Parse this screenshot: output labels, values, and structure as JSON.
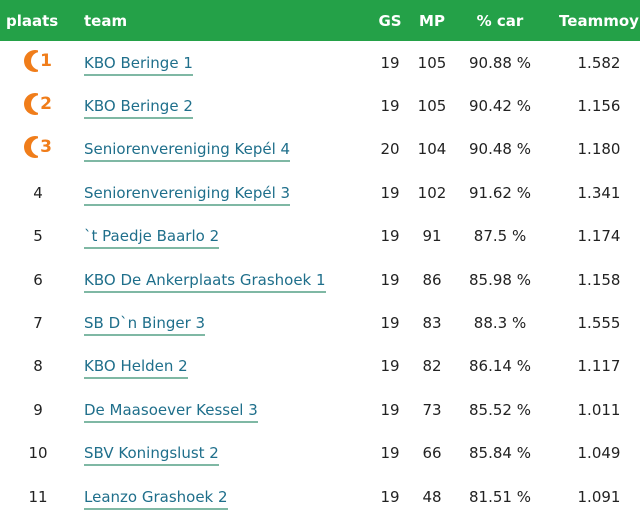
{
  "header": {
    "plaats": "plaats",
    "team": "team",
    "gs": "GS",
    "mp": "MP",
    "car": "% car",
    "teammoy": "Teammoy"
  },
  "colors": {
    "header_bg": "#24a148",
    "medal": "#f07d1a",
    "link": "#1f6f8b",
    "underline": "#7fb8a4"
  },
  "rows": [
    {
      "place": "1",
      "team": "KBO Beringe 1",
      "gs": "19",
      "mp": "105",
      "car": "90.88 %",
      "avg": "1.582"
    },
    {
      "place": "2",
      "team": "KBO Beringe 2",
      "gs": "19",
      "mp": "105",
      "car": "90.42 %",
      "avg": "1.156"
    },
    {
      "place": "3",
      "team": "Seniorenvereniging Kepél 4",
      "gs": "20",
      "mp": "104",
      "car": "90.48 %",
      "avg": "1.180"
    },
    {
      "place": "4",
      "team": "Seniorenvereniging Kepél 3",
      "gs": "19",
      "mp": "102",
      "car": "91.62 %",
      "avg": "1.341"
    },
    {
      "place": "5",
      "team": "`t Paedje Baarlo 2",
      "gs": "19",
      "mp": "91",
      "car": "87.5 %",
      "avg": "1.174"
    },
    {
      "place": "6",
      "team": "KBO De Ankerplaats Grashoek 1",
      "gs": "19",
      "mp": "86",
      "car": "85.98 %",
      "avg": "1.158"
    },
    {
      "place": "7",
      "team": "SB D`n Binger 3",
      "gs": "19",
      "mp": "83",
      "car": "88.3 %",
      "avg": "1.555"
    },
    {
      "place": "8",
      "team": "KBO Helden 2",
      "gs": "19",
      "mp": "82",
      "car": "86.14 %",
      "avg": "1.117"
    },
    {
      "place": "9",
      "team": "De Maasoever Kessel 3",
      "gs": "19",
      "mp": "73",
      "car": "85.52 %",
      "avg": "1.011"
    },
    {
      "place": "10",
      "team": "SBV Koningslust 2",
      "gs": "19",
      "mp": "66",
      "car": "85.84 %",
      "avg": "1.049"
    },
    {
      "place": "11",
      "team": "Leanzo Grashoek 2",
      "gs": "19",
      "mp": "48",
      "car": "81.51 %",
      "avg": "1.091"
    }
  ]
}
